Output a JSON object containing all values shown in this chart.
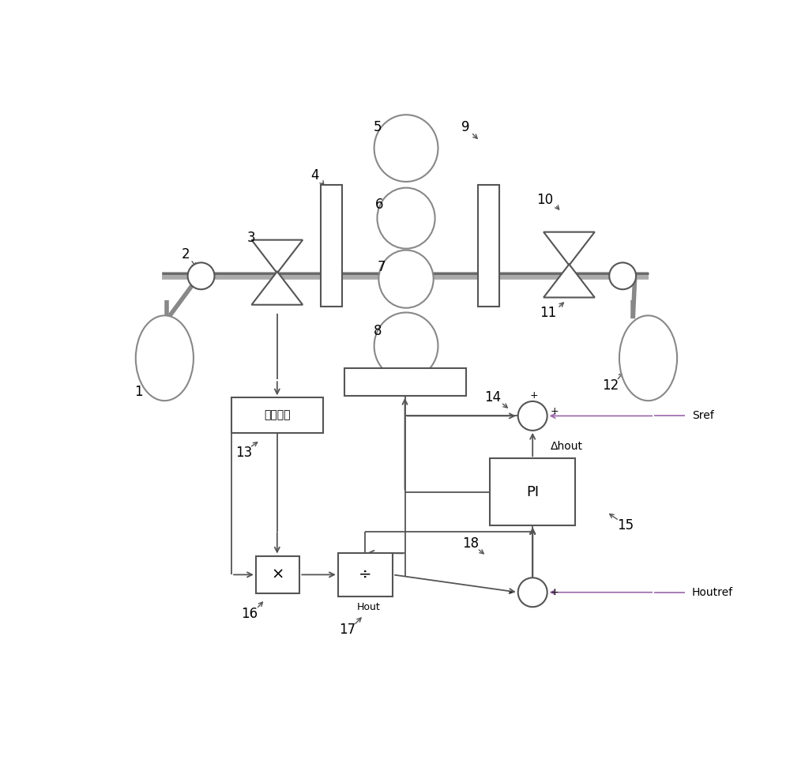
{
  "bg": "#ffffff",
  "sc": "#888888",
  "dc": "#555555",
  "pc": "#9966aa",
  "figsize": [
    10.0,
    9.86
  ],
  "dpi": 100,
  "delay_text": "延时模块",
  "PI_text": "PI",
  "mul_text": "×",
  "div_text": "÷",
  "Sref": "Sref",
  "Houtref": "Houtref",
  "Ahout": "Δhout",
  "Hout": "Hout"
}
